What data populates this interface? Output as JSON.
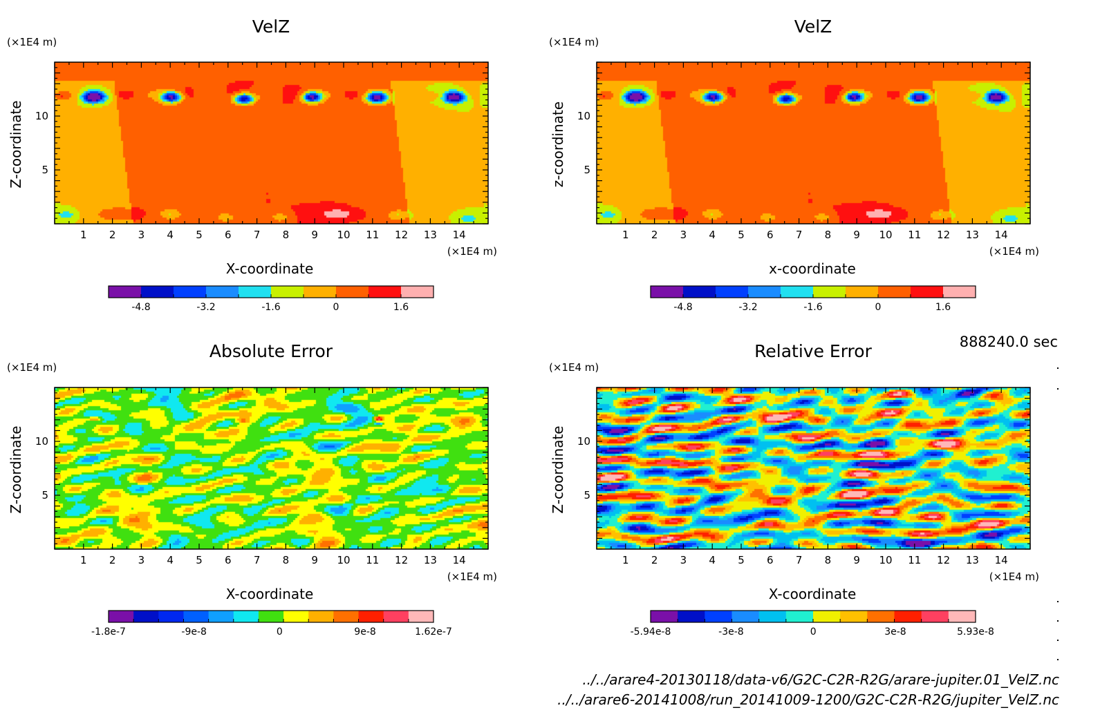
{
  "time_label": "888240.0 sec",
  "file_paths": [
    "../../arare4-20130118/data-v6/G2C-C2R-R2G/arare-jupiter.01_VelZ.nc",
    "../../arare6-20141008/run_20141009-1200/G2C-C2R-R2G/jupiter_VelZ.nc"
  ],
  "palettes": {
    "velz": [
      "#7a10a8",
      "#0010c8",
      "#0040ff",
      "#1a8cff",
      "#20e0f0",
      "#c8f000",
      "#ffb000",
      "#ff6000",
      "#ff1010",
      "#ffb0b0"
    ],
    "abs": [
      "#7a10a8",
      "#0010c8",
      "#0028f0",
      "#0060ff",
      "#10a0ff",
      "#10e8f0",
      "#40e010",
      "#ffff00",
      "#ffb000",
      "#ff7000",
      "#ff2000",
      "#ff4060",
      "#ffb8b8"
    ],
    "rel": [
      "#7a10a8",
      "#0010c8",
      "#0040ff",
      "#1a8cff",
      "#00c0f0",
      "#20f0d0",
      "#f0f000",
      "#ffc000",
      "#ff7000",
      "#ff2000",
      "#ff4060",
      "#ffb8b8"
    ]
  },
  "chart_data": [
    {
      "type": "heatmap",
      "title": "VelZ",
      "xlabel": "X-coordinate",
      "ylabel": "Z-coordinate",
      "x_unit": "(×1E4 m)",
      "y_unit": "(×1E4 m)",
      "xlim": [
        0,
        15
      ],
      "ylim": [
        0,
        15
      ],
      "xticks": [
        "1",
        "2",
        "3",
        "4",
        "5",
        "6",
        "7",
        "8",
        "9",
        "10",
        "11",
        "12",
        "13",
        "14"
      ],
      "yticks": [
        "5",
        "10"
      ],
      "field": "velz",
      "palette": "velz",
      "colorbar_ticks": [
        "-4.8",
        "-3.2",
        "-1.6",
        "0",
        "1.6"
      ],
      "colorbar_range": [
        -5.6,
        2.4
      ]
    },
    {
      "type": "heatmap",
      "title": "VelZ",
      "xlabel": "x-coordinate",
      "ylabel": "z-coordinate",
      "x_unit": "(×1E4 m)",
      "y_unit": "(×1E4 m)",
      "xlim": [
        0,
        15
      ],
      "ylim": [
        0,
        15
      ],
      "xticks": [
        "1",
        "2",
        "3",
        "4",
        "5",
        "6",
        "7",
        "8",
        "9",
        "10",
        "11",
        "12",
        "13",
        "14"
      ],
      "yticks": [
        "5",
        "10"
      ],
      "field": "velz",
      "palette": "velz",
      "colorbar_ticks": [
        "-4.8",
        "-3.2",
        "-1.6",
        "0",
        "1.6"
      ],
      "colorbar_range": [
        -5.6,
        2.4
      ]
    },
    {
      "type": "heatmap",
      "title": "Absolute Error",
      "xlabel": "X-coordinate",
      "ylabel": "Z-coordinate",
      "x_unit": "(×1E4 m)",
      "y_unit": "(×1E4 m)",
      "xlim": [
        0,
        15
      ],
      "ylim": [
        0,
        15
      ],
      "xticks": [
        "1",
        "2",
        "3",
        "4",
        "5",
        "6",
        "7",
        "8",
        "9",
        "10",
        "11",
        "12",
        "13",
        "14"
      ],
      "yticks": [
        "5",
        "10"
      ],
      "field": "abs",
      "palette": "abs",
      "colorbar_ticks": [
        "-1.8e-7",
        "-9e-8",
        "0",
        "9e-8",
        "1.62e-7"
      ],
      "colorbar_range": [
        -1.8e-07,
        1.62e-07
      ]
    },
    {
      "type": "heatmap",
      "title": "Relative Error",
      "xlabel": "X-coordinate",
      "ylabel": "Z-coordinate",
      "x_unit": "(×1E4 m)",
      "y_unit": "(×1E4 m)",
      "xlim": [
        0,
        15
      ],
      "ylim": [
        0,
        15
      ],
      "xticks": [
        "1",
        "2",
        "3",
        "4",
        "5",
        "6",
        "7",
        "8",
        "9",
        "10",
        "11",
        "12",
        "13",
        "14"
      ],
      "yticks": [
        "5",
        "10"
      ],
      "field": "rel",
      "palette": "rel",
      "colorbar_ticks": [
        "-5.94e-8",
        "-3e-8",
        "0",
        "3e-8",
        "5.93e-8"
      ],
      "colorbar_range": [
        -5.94e-08,
        5.93e-08
      ]
    }
  ]
}
